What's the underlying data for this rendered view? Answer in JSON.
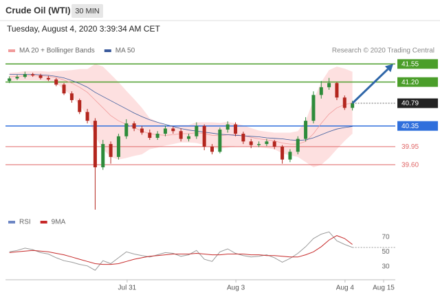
{
  "header": {
    "title": "Crude Oil (WTI)",
    "timeframe": "30 MIN",
    "datetime": "Tuesday, August 4, 2020 3:39:34 AM CET"
  },
  "chart_data": [
    {
      "type": "candlestick",
      "source": "Research © 2020 Trading Central",
      "x": [
        1,
        3,
        5,
        7,
        9,
        11,
        13,
        15,
        17,
        19,
        21,
        23,
        25,
        27,
        29,
        31,
        33,
        35,
        37,
        39,
        41,
        43,
        45,
        47,
        49,
        51,
        53,
        55,
        57,
        59,
        61,
        63,
        65,
        67,
        69,
        71,
        73,
        75,
        77,
        79,
        81,
        83,
        85,
        87,
        89
      ],
      "xlim": [
        0,
        100
      ],
      "ylim": [
        38.7,
        41.7
      ],
      "open": [
        41.22,
        41.27,
        41.3,
        41.35,
        41.33,
        41.28,
        41.25,
        41.15,
        40.98,
        40.85,
        40.62,
        40.45,
        39.55,
        40.0,
        39.75,
        40.15,
        40.4,
        40.3,
        40.22,
        40.12,
        40.2,
        40.3,
        40.25,
        40.1,
        40.15,
        40.35,
        39.95,
        39.85,
        40.28,
        40.38,
        40.2,
        40.05,
        39.98,
        40.0,
        40.05,
        39.95,
        39.7,
        39.85,
        40.1,
        40.45,
        40.95,
        41.1,
        41.18,
        40.9,
        40.7
      ],
      "high": [
        41.31,
        41.34,
        41.4,
        41.38,
        41.36,
        41.32,
        41.28,
        41.18,
        41.02,
        40.88,
        40.68,
        40.5,
        40.08,
        40.05,
        40.2,
        40.48,
        40.44,
        40.35,
        40.28,
        40.25,
        40.36,
        40.34,
        40.3,
        40.2,
        40.42,
        40.38,
        40.0,
        40.32,
        40.44,
        40.42,
        40.24,
        40.1,
        40.05,
        40.1,
        40.08,
        39.98,
        39.9,
        40.15,
        40.52,
        41.02,
        41.22,
        41.28,
        41.2,
        40.94,
        40.84
      ],
      "low": [
        41.18,
        41.24,
        41.27,
        41.3,
        41.25,
        41.22,
        41.12,
        40.95,
        40.8,
        40.58,
        40.4,
        38.73,
        39.5,
        39.62,
        39.7,
        40.1,
        40.25,
        40.18,
        40.08,
        40.08,
        40.15,
        40.2,
        40.05,
        40.05,
        40.1,
        39.88,
        39.8,
        39.82,
        40.22,
        40.15,
        40.0,
        39.92,
        39.94,
        39.96,
        39.9,
        39.62,
        39.65,
        39.8,
        40.05,
        40.4,
        40.88,
        41.05,
        40.85,
        40.66,
        40.65
      ],
      "close": [
        41.27,
        41.3,
        41.35,
        41.33,
        41.28,
        41.25,
        41.15,
        40.98,
        40.85,
        40.62,
        40.45,
        39.55,
        40.0,
        39.75,
        40.15,
        40.4,
        40.3,
        40.22,
        40.12,
        40.2,
        40.3,
        40.25,
        40.1,
        40.15,
        40.35,
        39.95,
        39.85,
        40.28,
        40.38,
        40.2,
        40.05,
        39.98,
        40.0,
        40.05,
        39.95,
        39.7,
        39.85,
        40.1,
        40.45,
        40.95,
        41.1,
        41.18,
        40.9,
        40.7,
        40.79
      ],
      "up_color": "#2e8b3a",
      "down_color": "#b3261e",
      "series": [
        {
          "name": "MA 20 + Bollinger Bands",
          "color": "#f19a9a",
          "band_color": "#fde0e0",
          "values": [
            41.3,
            41.31,
            41.32,
            41.32,
            41.32,
            41.31,
            41.29,
            41.24,
            41.18,
            41.1,
            41.0,
            40.85,
            40.7,
            40.55,
            40.45,
            40.38,
            40.32,
            40.25,
            40.2,
            40.18,
            40.17,
            40.18,
            40.2,
            40.2,
            40.22,
            40.2,
            40.17,
            40.16,
            40.18,
            40.18,
            40.16,
            40.13,
            40.1,
            40.08,
            40.06,
            40.02,
            40.0,
            40.0,
            40.05,
            40.2,
            40.4,
            40.58,
            40.7,
            40.76,
            40.8
          ],
          "upper": [
            41.38,
            41.39,
            41.41,
            41.41,
            41.41,
            41.4,
            41.41,
            41.42,
            41.43,
            41.45,
            41.45,
            41.55,
            41.5,
            41.35,
            41.2,
            41.03,
            40.87,
            40.7,
            40.5,
            40.43,
            40.37,
            40.36,
            40.37,
            40.37,
            40.42,
            40.42,
            40.42,
            40.41,
            40.43,
            40.4,
            40.36,
            40.31,
            40.26,
            40.24,
            40.22,
            40.22,
            40.22,
            40.25,
            40.45,
            40.85,
            41.2,
            41.43,
            41.5,
            41.46,
            41.4
          ],
          "lower": [
            41.22,
            41.23,
            41.23,
            41.23,
            41.23,
            41.22,
            41.17,
            41.06,
            40.93,
            40.75,
            40.55,
            40.15,
            39.9,
            39.75,
            39.7,
            39.73,
            39.77,
            39.8,
            39.9,
            39.93,
            39.97,
            40.0,
            40.03,
            40.03,
            40.02,
            39.98,
            39.92,
            39.91,
            39.93,
            39.96,
            39.96,
            39.95,
            39.94,
            39.92,
            39.9,
            39.82,
            39.78,
            39.75,
            39.65,
            39.55,
            39.6,
            39.73,
            39.9,
            40.06,
            40.2
          ]
        },
        {
          "name": "MA 50",
          "color": "#3a5a9c",
          "values": [
            41.35,
            41.35,
            41.35,
            41.35,
            41.34,
            41.33,
            41.31,
            41.28,
            41.23,
            41.17,
            41.1,
            41.0,
            40.92,
            40.84,
            40.76,
            40.68,
            40.6,
            40.53,
            40.47,
            40.42,
            40.38,
            40.34,
            40.3,
            40.27,
            40.25,
            40.23,
            40.21,
            40.19,
            40.18,
            40.17,
            40.16,
            40.15,
            40.14,
            40.12,
            40.11,
            40.1,
            40.08,
            40.07,
            40.08,
            40.12,
            40.18,
            40.24,
            40.29,
            40.32,
            40.34
          ]
        }
      ],
      "levels": [
        {
          "value": 41.55,
          "label": "41.55",
          "color": "#4b9e2a",
          "style": "box"
        },
        {
          "value": 41.2,
          "label": "41.20",
          "color": "#4b9e2a",
          "style": "box"
        },
        {
          "value": 40.79,
          "label": "40.79",
          "color": "#222222",
          "style": "dotted-box"
        },
        {
          "value": 40.35,
          "label": "40.35",
          "color": "#2f6fdc",
          "style": "box"
        },
        {
          "value": 39.95,
          "label": "39.95",
          "color": "#e06666",
          "style": "text"
        },
        {
          "value": 39.6,
          "label": "39.60",
          "color": "#e06666",
          "style": "text"
        }
      ],
      "arrow_color": "#2f66a8"
    },
    {
      "type": "line",
      "x": [
        1,
        3,
        5,
        7,
        9,
        11,
        13,
        15,
        17,
        19,
        21,
        23,
        25,
        27,
        29,
        31,
        33,
        35,
        37,
        39,
        41,
        43,
        45,
        47,
        49,
        51,
        53,
        55,
        57,
        59,
        61,
        63,
        65,
        67,
        69,
        71,
        73,
        75,
        77,
        79,
        81,
        83,
        85,
        87,
        89
      ],
      "xlim": [
        0,
        100
      ],
      "ylim": [
        15,
        80
      ],
      "yticks": [
        30,
        50,
        70
      ],
      "xticks": [
        {
          "value": 31.2,
          "label": "Jul 31"
        },
        {
          "value": 59.1,
          "label": "Aug 3"
        },
        {
          "value": 87.1,
          "label": "Aug 4"
        },
        {
          "value": 97.0,
          "label": "Aug 15"
        }
      ],
      "series": [
        {
          "name": "RSI",
          "color": "#6d86c4",
          "line_color": "#9a9a9a",
          "values": [
            50,
            52,
            55,
            53,
            49,
            47,
            42,
            38,
            36,
            33,
            31,
            25,
            38,
            34,
            42,
            50,
            47,
            45,
            43,
            46,
            49,
            48,
            44,
            46,
            52,
            40,
            37,
            50,
            54,
            48,
            45,
            43,
            44,
            46,
            42,
            36,
            41,
            48,
            57,
            68,
            74,
            77,
            65,
            60,
            56
          ]
        },
        {
          "name": "9MA",
          "color": "#c62828",
          "values": [
            49,
            50,
            51,
            52,
            51,
            50,
            48,
            46,
            43,
            40,
            37,
            34,
            33,
            33,
            34,
            37,
            40,
            42,
            44,
            45,
            46,
            47,
            47,
            47,
            48,
            47,
            46,
            46,
            47,
            47,
            47,
            46,
            46,
            45,
            45,
            44,
            43,
            43,
            46,
            50,
            57,
            66,
            72,
            68,
            60
          ]
        }
      ]
    }
  ]
}
